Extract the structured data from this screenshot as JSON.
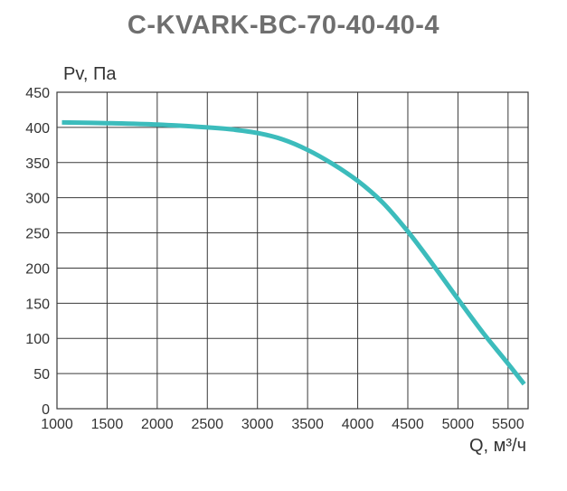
{
  "title": "C-KVARK-BC-70-40-40-4",
  "chart_data": {
    "type": "line",
    "title": "C-KVARK-BC-70-40-40-4",
    "xlabel": "Q, м³/ч",
    "ylabel": "Pv, Па",
    "xlim": [
      1000,
      5700
    ],
    "ylim": [
      0,
      450
    ],
    "x_ticks": [
      1000,
      1500,
      2000,
      2500,
      3000,
      3500,
      4000,
      4500,
      5000,
      5500
    ],
    "y_ticks": [
      0,
      50,
      100,
      150,
      200,
      250,
      300,
      350,
      400,
      450
    ],
    "grid": true,
    "series": [
      {
        "color": "#3cbcbc",
        "x": [
          1050,
          1500,
          2000,
          2500,
          2750,
          3000,
          3250,
          3500,
          3750,
          4000,
          4250,
          4500,
          4750,
          5000,
          5250,
          5500,
          5660
        ],
        "y": [
          407,
          406,
          404,
          400,
          397,
          392,
          383,
          368,
          348,
          324,
          293,
          252,
          205,
          156,
          108,
          64,
          35
        ]
      }
    ]
  }
}
